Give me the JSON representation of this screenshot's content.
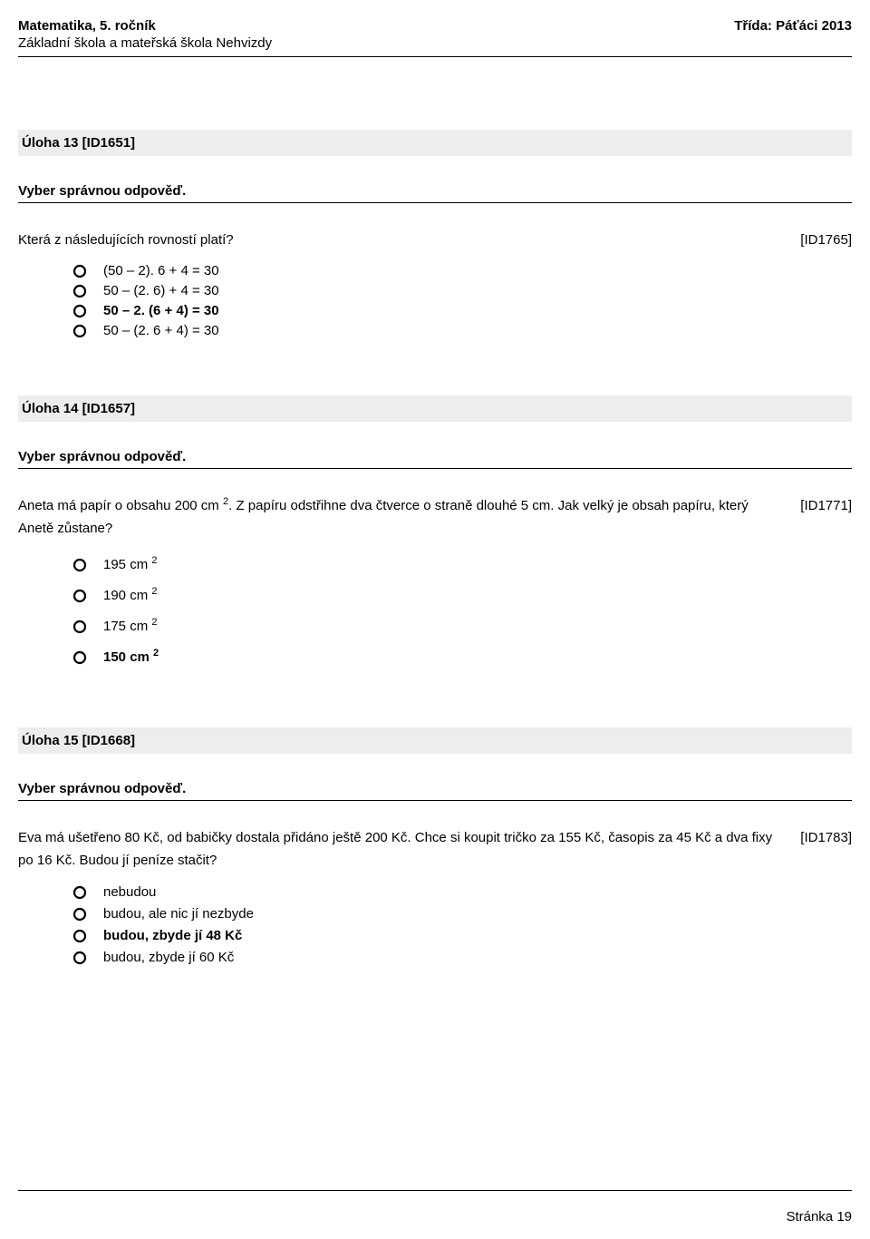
{
  "header": {
    "left_title": "Matematika, 5. ročník",
    "right_title": "Třída: Páťáci 2013",
    "school": "Základní škola a mateřská škola Nehvizdy"
  },
  "tasks": [
    {
      "title": "Úloha 13 [ID1651]",
      "instruction": "Vyber správnou odpověď.",
      "question": "Která z následujících rovností platí?",
      "question_id": "[ID1765]",
      "options": [
        {
          "text": "(50 – 2). 6 + 4 = 30",
          "bold": false
        },
        {
          "text": "50 – (2. 6) + 4 = 30",
          "bold": false
        },
        {
          "text": "50 – 2. (6 + 4) = 30",
          "bold": true
        },
        {
          "text": "50 – (2. 6 + 4) = 30",
          "bold": false
        }
      ]
    },
    {
      "title": "Úloha 14 [ID1657]",
      "instruction": "Vyber správnou odpověď.",
      "question_html": "Aneta má papír o obsahu 200 cm <sup>2</sup>. Z papíru odstřihne dva čtverce o straně dlouhé 5 cm. Jak velký je obsah papíru, který Anetě zůstane?",
      "question_id": "[ID1771]",
      "options": [
        {
          "html": "195 cm <sup>2</sup>",
          "bold": false
        },
        {
          "html": "190 cm <sup>2</sup>",
          "bold": false
        },
        {
          "html": "175 cm <sup>2</sup>",
          "bold": false
        },
        {
          "html": "150 cm <sup>2</sup>",
          "bold": true
        }
      ]
    },
    {
      "title": "Úloha 15 [ID1668]",
      "instruction": "Vyber správnou odpověď.",
      "question": "Eva má ušetřeno 80 Kč, od babičky dostala přidáno ještě 200 Kč. Chce si koupit tričko za 155 Kč, časopis za 45 Kč a dva fixy po 16 Kč. Budou jí peníze stačit?",
      "question_id": "[ID1783]",
      "options": [
        {
          "text": "nebudou",
          "bold": false
        },
        {
          "text": "budou, ale nic jí nezbyde",
          "bold": false
        },
        {
          "text": "budou, zbyde jí 48 Kč",
          "bold": true
        },
        {
          "text": "budou, zbyde jí 60 Kč",
          "bold": false
        }
      ]
    }
  ],
  "footer": {
    "page_label": "Stránka 19"
  },
  "style": {
    "radio_stroke": "#000000",
    "radio_stroke_width": 2,
    "radio_outer_r": 7
  }
}
